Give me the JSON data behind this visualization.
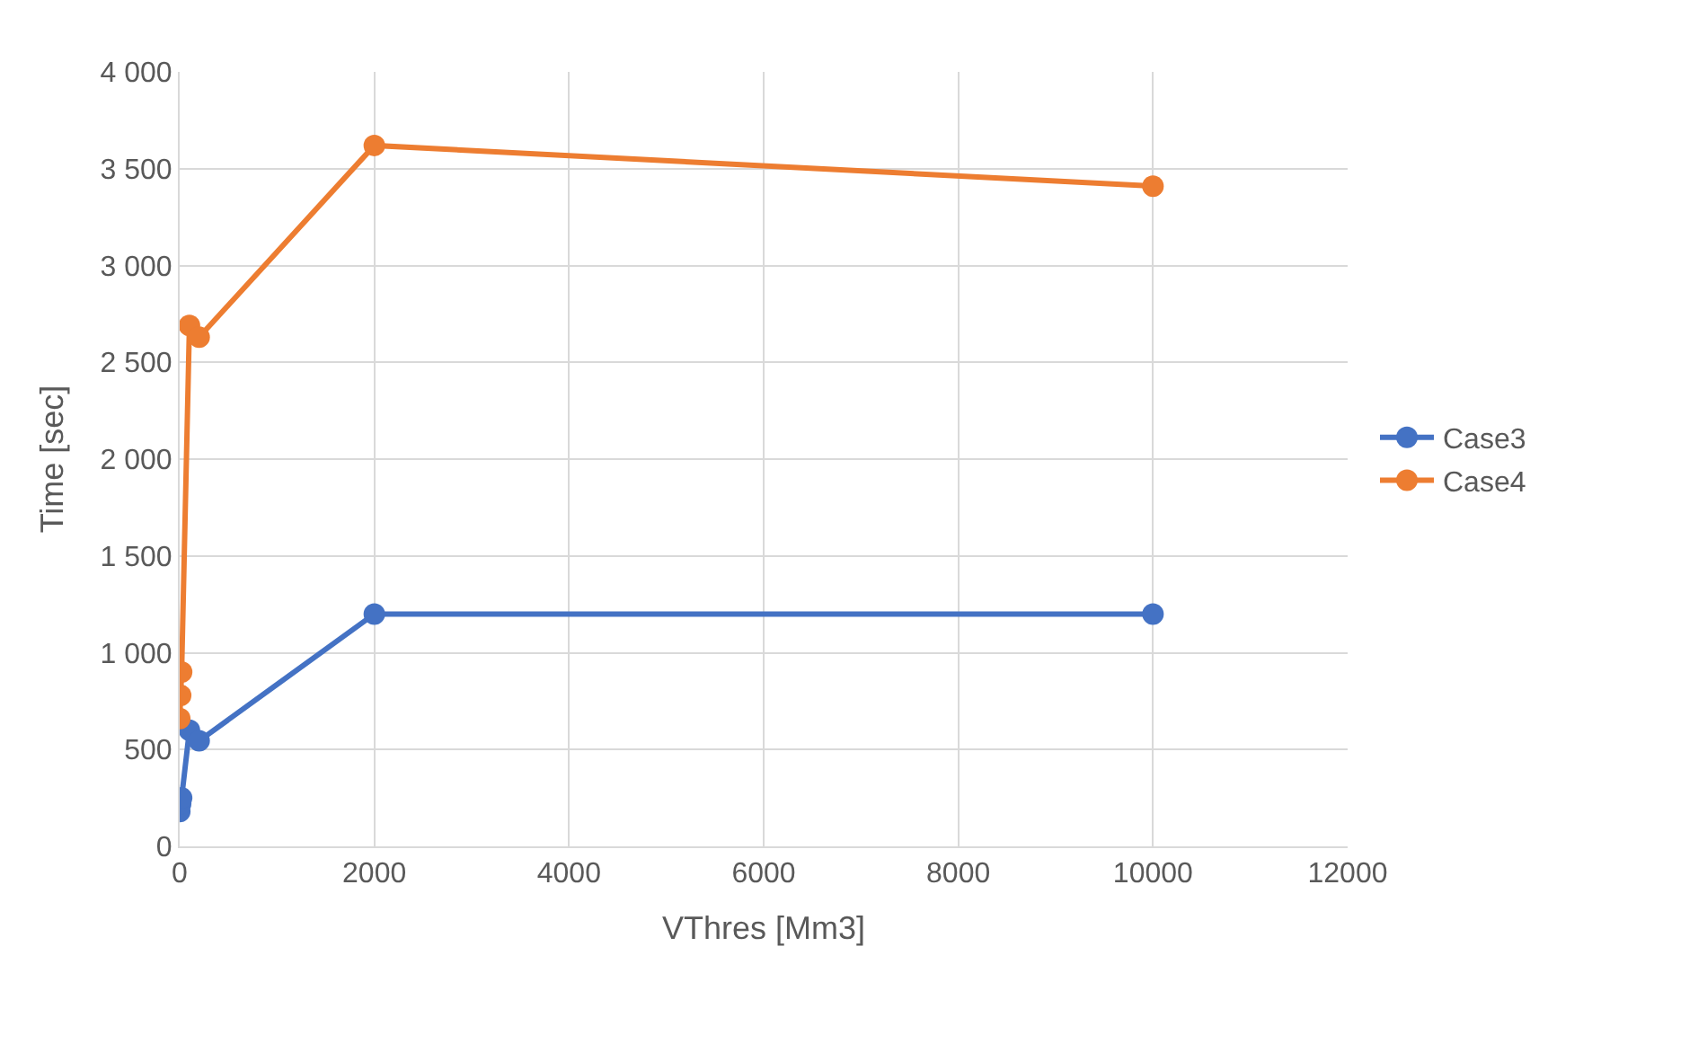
{
  "chart_data": {
    "type": "line",
    "xlabel": "VThres [Mm3]",
    "ylabel": "Time [sec]",
    "x": [
      1,
      10,
      20,
      100,
      200,
      2000,
      10000
    ],
    "series": [
      {
        "name": "Case3",
        "color": "#4472c4",
        "values": [
          180,
          220,
          250,
          600,
          545,
          1200,
          1200
        ]
      },
      {
        "name": "Case4",
        "color": "#ed7d31",
        "values": [
          660,
          780,
          900,
          2690,
          2630,
          3620,
          3410
        ]
      }
    ],
    "xlim": [
      0,
      12000
    ],
    "xticks": [
      0,
      2000,
      4000,
      6000,
      8000,
      10000,
      12000
    ],
    "ylim": [
      0,
      4000
    ],
    "yticks": [
      0,
      {
        "value": 500,
        "label": "500"
      },
      {
        "value": 1000,
        "label": "1 000"
      },
      {
        "value": 1500,
        "label": "1 500"
      },
      {
        "value": 2000,
        "label": "2 000"
      },
      {
        "value": 2500,
        "label": "2 500"
      },
      {
        "value": 3000,
        "label": "3 000"
      },
      {
        "value": 3500,
        "label": "3 500"
      },
      {
        "value": 4000,
        "label": "4 000"
      }
    ],
    "grid": true,
    "legend": "right",
    "marker": "circle",
    "line_style": "solid"
  }
}
